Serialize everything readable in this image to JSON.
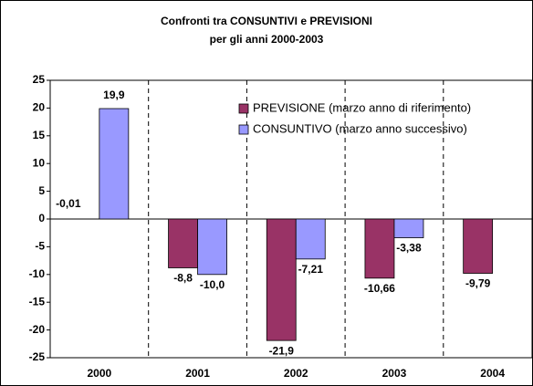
{
  "chart_data": {
    "type": "bar",
    "title": [
      "Confronti tra CONSUNTIVI e PREVISIONI",
      "per gli anni 2000-2003"
    ],
    "categories": [
      "2000",
      "2001",
      "2002",
      "2003",
      "2004"
    ],
    "series": [
      {
        "name": "PREVISIONE (marzo anno di riferimento)",
        "color": "#993366",
        "values": [
          -0.01,
          -8.8,
          -21.9,
          -10.66,
          -9.79
        ],
        "value_labels": [
          "-0,01",
          "-8,8",
          "-21,9",
          "-10,66",
          "-9,79"
        ]
      },
      {
        "name": "CONSUNTIVO (marzo anno successivo)",
        "color": "#9999ff",
        "values": [
          19.9,
          -10.0,
          -7.21,
          -3.38,
          null
        ],
        "value_labels": [
          "19,9",
          "-10,0",
          "-7,21",
          "-3,38",
          null
        ]
      }
    ],
    "ylim": [
      -25,
      25
    ],
    "yticks": [
      -25,
      -20,
      -15,
      -10,
      -5,
      0,
      5,
      10,
      15,
      20,
      25
    ],
    "grid": false,
    "legend": "top-right"
  }
}
